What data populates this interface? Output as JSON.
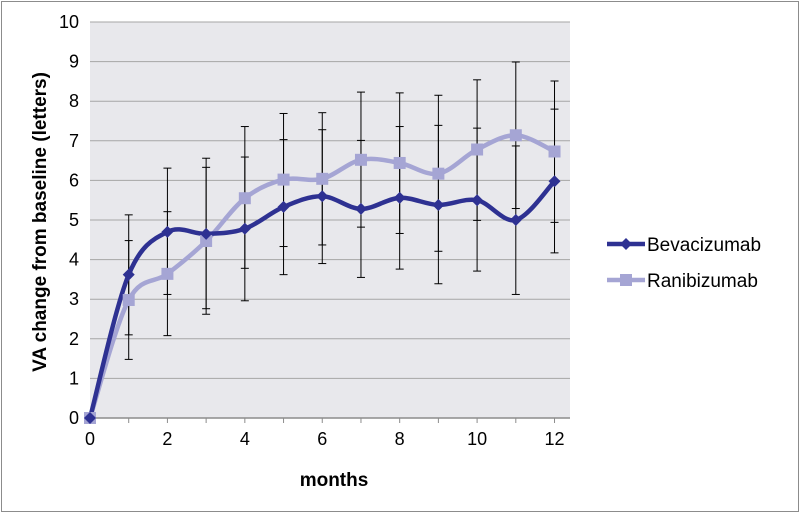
{
  "chart_data": {
    "type": "line",
    "title": "",
    "xlabel": "months",
    "ylabel": "VA change from baseline (letters)",
    "xlim": [
      0,
      12.4
    ],
    "ylim": [
      0,
      10
    ],
    "xticks": [
      0,
      2,
      4,
      6,
      8,
      10,
      12
    ],
    "yticks": [
      0,
      1,
      2,
      3,
      4,
      5,
      6,
      7,
      8,
      9,
      10
    ],
    "grid": "horizontal",
    "legend_position": "right",
    "x": [
      0,
      1,
      2,
      3,
      4,
      5,
      6,
      7,
      8,
      9,
      10,
      11,
      12
    ],
    "series": [
      {
        "name": "Bevacizumab",
        "color": "#2e3192",
        "marker": "diamond",
        "values": [
          0,
          3.62,
          4.7,
          4.65,
          4.78,
          5.33,
          5.6,
          5.28,
          5.56,
          5.38,
          5.5,
          5.0,
          5.98
        ],
        "error_low": [
          0,
          2.1,
          3.12,
          2.76,
          2.96,
          3.62,
          3.9,
          3.55,
          3.76,
          3.39,
          3.71,
          3.12,
          4.17
        ],
        "error_high": [
          0,
          5.13,
          6.31,
          6.56,
          6.59,
          7.03,
          7.28,
          7.01,
          7.36,
          7.39,
          7.32,
          6.87,
          7.8
        ]
      },
      {
        "name": "Ranibizumab",
        "color": "#a5a5d4",
        "marker": "square",
        "values": [
          0,
          2.98,
          3.64,
          4.47,
          5.55,
          6.02,
          6.04,
          6.52,
          6.44,
          6.17,
          6.78,
          7.14,
          6.73
        ],
        "error_low": [
          0,
          1.48,
          2.08,
          2.62,
          3.78,
          4.33,
          4.37,
          4.82,
          4.66,
          4.21,
          4.99,
          5.29,
          4.94
        ],
        "error_high": [
          0,
          4.48,
          5.21,
          6.33,
          7.36,
          7.69,
          7.71,
          8.23,
          8.21,
          8.15,
          8.54,
          8.99,
          8.51
        ]
      }
    ]
  },
  "colors": {
    "plot_background": "#e8e8ec",
    "gridline": "#a6a6a6",
    "error_bar": "#000000"
  }
}
